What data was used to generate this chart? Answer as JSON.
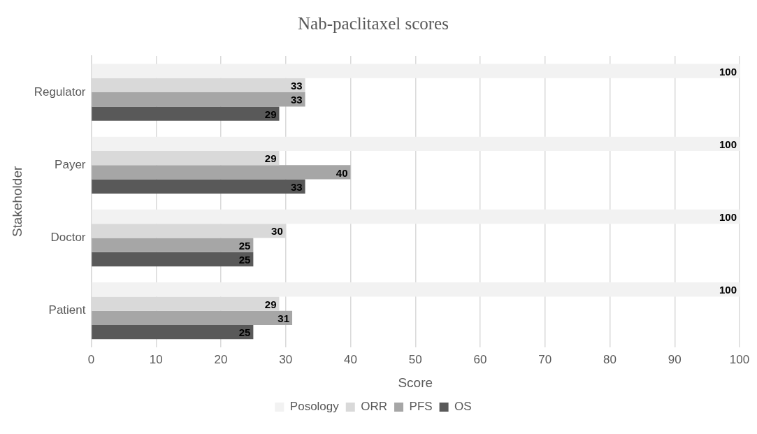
{
  "chart_data": {
    "type": "bar",
    "orientation": "horizontal",
    "title": "Nab-paclitaxel scores",
    "xlabel": "Score",
    "ylabel": "Stakeholder",
    "categories": [
      "Regulator",
      "Payer",
      "Doctor",
      "Patient"
    ],
    "series": [
      {
        "name": "Posology",
        "color": "#f2f2f2",
        "values": [
          100,
          100,
          100,
          100
        ]
      },
      {
        "name": "ORR",
        "color": "#d9d9d9",
        "values": [
          33,
          29,
          30,
          29
        ]
      },
      {
        "name": "PFS",
        "color": "#a6a6a6",
        "values": [
          33,
          40,
          25,
          31
        ]
      },
      {
        "name": "OS",
        "color": "#595959",
        "values": [
          29,
          33,
          25,
          25
        ]
      }
    ],
    "xlim": [
      0,
      100
    ],
    "xticks": [
      0,
      10,
      20,
      30,
      40,
      50,
      60,
      70,
      80,
      90,
      100
    ],
    "grid": "x",
    "legend": "bottom",
    "data_labels": true
  }
}
